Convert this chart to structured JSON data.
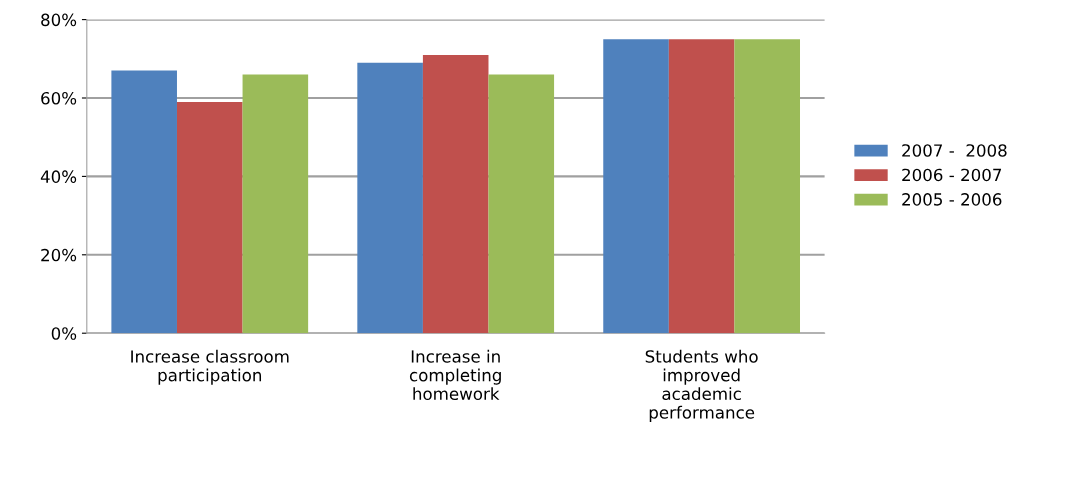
{
  "chart_data": {
    "type": "bar",
    "categories": [
      "Increase classroom\nparticipation",
      "Increase in\ncompleting\nhomework",
      "Students who\nimproved\nacademic\nperformance"
    ],
    "series": [
      {
        "name": "2007 -  2008",
        "color": "#4f81bd",
        "values": [
          67,
          69,
          75
        ]
      },
      {
        "name": "2006 - 2007",
        "color": "#c0504d",
        "values": [
          59,
          71,
          75
        ]
      },
      {
        "name": "2005 - 2006",
        "color": "#9bbb59",
        "values": [
          66,
          66,
          75
        ]
      }
    ],
    "ylim": [
      0,
      80
    ],
    "yticks": [
      {
        "value": 0,
        "label": "0%"
      },
      {
        "value": 20,
        "label": "20%"
      },
      {
        "value": 40,
        "label": "40%"
      },
      {
        "value": 60,
        "label": "60%"
      },
      {
        "value": 80,
        "label": "80%"
      }
    ],
    "grid": "y",
    "legend": "right"
  }
}
